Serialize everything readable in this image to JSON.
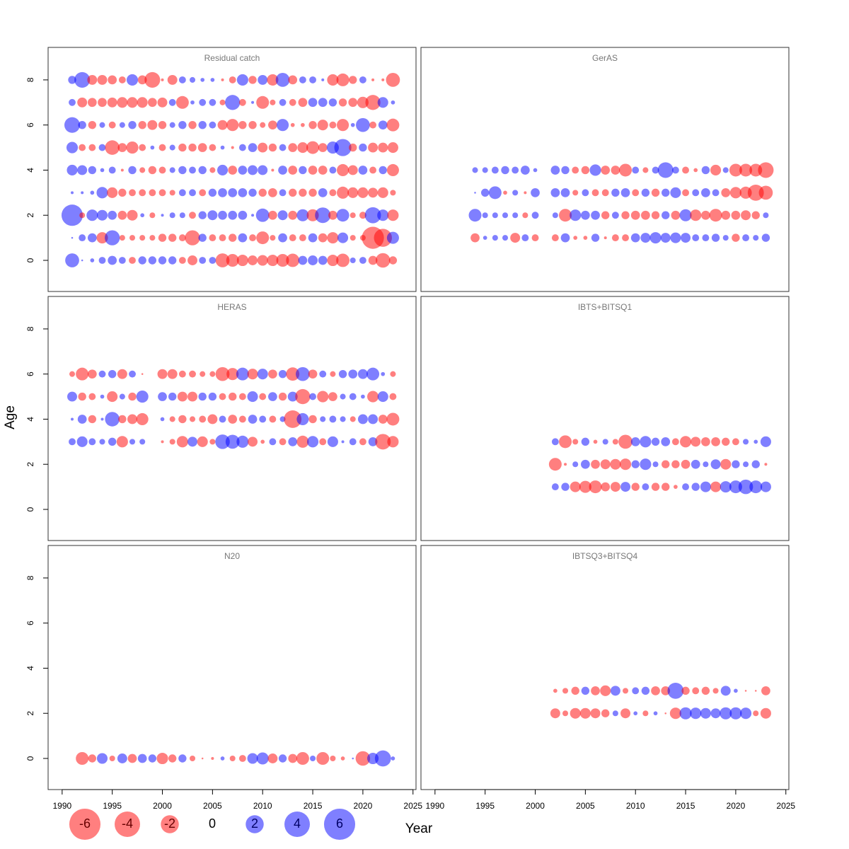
{
  "figure": {
    "xlabel": "Year",
    "ylabel": "Age",
    "xlim": [
      1988.6,
      2025.3
    ],
    "ylim": [
      -1.38,
      9.44
    ],
    "xticks": [
      1990,
      1995,
      2000,
      2005,
      2010,
      2015,
      2020,
      2025
    ],
    "yticks": [
      0,
      2,
      4,
      6,
      8
    ],
    "positive_color": "#0000ff",
    "negative_color": "#ff0000",
    "legend": {
      "values": [
        -6,
        -4,
        -2,
        0,
        2,
        4,
        6
      ]
    }
  },
  "chart_data": [
    {
      "type": "bubble",
      "title": "Residual catch",
      "x": [
        1991,
        1992,
        1993,
        1994,
        1995,
        1996,
        1997,
        1998,
        1999,
        2000,
        2001,
        2002,
        2003,
        2004,
        2005,
        2006,
        2007,
        2008,
        2009,
        2010,
        2011,
        2012,
        2013,
        2014,
        2015,
        2016,
        2017,
        2018,
        2019,
        2020,
        2021,
        2022,
        2023
      ],
      "ages": [
        0,
        1,
        2,
        3,
        4,
        5,
        6,
        7,
        8
      ],
      "residuals": [
        [
          1.2,
          0.02,
          0.1,
          0.3,
          0.5,
          0.3,
          -0.3,
          0.4,
          0.4,
          0.4,
          0.4,
          -0.3,
          -0.6,
          0.3,
          0.3,
          -1.2,
          -1.0,
          -0.8,
          -0.6,
          -0.7,
          -0.8,
          -1.0,
          -1.1,
          0.5,
          0.6,
          0.5,
          -0.8,
          -1.1,
          0.2,
          0.3,
          -0.5,
          -1.3,
          -0.4
        ],
        [
          0.02,
          0.3,
          0.5,
          -0.8,
          1.4,
          -0.2,
          -0.2,
          -0.2,
          -0.2,
          -0.4,
          -0.4,
          -0.3,
          -1.4,
          0.4,
          -0.3,
          -0.3,
          -0.4,
          0.5,
          -0.3,
          -1.0,
          -0.2,
          0.5,
          -0.3,
          -0.3,
          0.5,
          -0.5,
          -0.8,
          0.7,
          -0.2,
          -0.2,
          -3.0,
          -2.0,
          0.9
        ],
        [
          2.8,
          -0.2,
          0.8,
          0.7,
          0.5,
          -0.5,
          -0.7,
          0.1,
          -0.2,
          0.05,
          0.2,
          0.2,
          -0.3,
          0.4,
          0.6,
          0.5,
          0.5,
          0.5,
          0.05,
          1.1,
          -0.5,
          0.6,
          -0.5,
          0.9,
          -0.9,
          1.5,
          -0.5,
          1.0,
          -0.2,
          -0.3,
          1.6,
          0.8,
          -0.8
        ],
        [
          0.05,
          0.05,
          0.1,
          0.8,
          -0.7,
          -0.4,
          -0.3,
          -0.3,
          -0.3,
          -0.3,
          -0.2,
          0.3,
          0.3,
          -0.3,
          0.4,
          0.5,
          0.5,
          0.5,
          0.4,
          -0.4,
          -0.5,
          0.3,
          -0.4,
          -0.4,
          -0.4,
          0.5,
          -0.3,
          -0.9,
          -0.7,
          -0.7,
          -0.6,
          -0.7,
          -0.2
        ],
        [
          0.7,
          0.6,
          0.4,
          0.1,
          0.3,
          -0.05,
          0.4,
          -0.2,
          -0.4,
          -0.3,
          0.2,
          0.4,
          0.3,
          0.4,
          -0.2,
          0.7,
          -0.5,
          0.5,
          0.6,
          0.6,
          -0.05,
          0.5,
          -0.5,
          0.4,
          -0.5,
          -0.5,
          0.3,
          -0.9,
          -0.6,
          0.5,
          -0.3,
          0.4,
          -0.9
        ],
        [
          0.8,
          -0.3,
          -0.3,
          0.3,
          -1.3,
          -0.5,
          -0.9,
          -0.3,
          0.1,
          -0.3,
          0.2,
          -0.4,
          -0.4,
          -0.5,
          -0.3,
          0.1,
          -0.05,
          0.3,
          0.5,
          -0.6,
          -0.4,
          0.3,
          -0.5,
          -0.7,
          -1.0,
          -0.5,
          0.9,
          1.8,
          -0.4,
          0.4,
          -0.6,
          -0.6,
          -0.7
        ],
        [
          1.5,
          0.4,
          -0.4,
          0.2,
          -0.3,
          0.2,
          0.4,
          -0.4,
          -0.6,
          -0.4,
          0.2,
          0.4,
          -0.4,
          0.4,
          0.3,
          -0.6,
          -0.9,
          -0.4,
          -0.4,
          -0.2,
          -0.5,
          0.9,
          -0.1,
          -0.1,
          -0.4,
          -0.7,
          -0.3,
          -0.9,
          0.1,
          1.2,
          -0.3,
          0.5,
          -1.0
        ],
        [
          0.3,
          -0.6,
          -0.5,
          -0.5,
          -0.6,
          -0.7,
          -0.7,
          -0.7,
          -0.5,
          -0.6,
          0.3,
          -1.0,
          0.1,
          0.3,
          0.3,
          -0.2,
          1.4,
          -0.3,
          0.05,
          -1.0,
          -0.2,
          0.3,
          -0.3,
          -0.5,
          0.5,
          0.5,
          0.4,
          -0.4,
          -0.5,
          -0.8,
          -1.4,
          0.7,
          0.1
        ],
        [
          0.4,
          1.5,
          -0.6,
          -0.6,
          -0.5,
          -0.3,
          0.8,
          -0.5,
          -1.5,
          -0.05,
          -0.6,
          0.3,
          0.2,
          0.1,
          0.1,
          -0.05,
          -0.3,
          0.8,
          -0.4,
          0.6,
          -0.8,
          1.2,
          -0.5,
          0.3,
          0.3,
          0.05,
          -0.8,
          -1.0,
          -0.4,
          0.3,
          -0.05,
          -0.05,
          -1.2
        ]
      ]
    },
    {
      "type": "bubble",
      "title": "GerAS",
      "x": [
        1994,
        1995,
        1996,
        1997,
        1998,
        1999,
        2000,
        2001,
        2002,
        2003,
        2004,
        2005,
        2006,
        2007,
        2008,
        2009,
        2010,
        2011,
        2012,
        2013,
        2014,
        2015,
        2016,
        2017,
        2018,
        2019,
        2020,
        2021,
        2022,
        2023
      ],
      "ages": [
        1,
        2,
        3,
        4
      ],
      "residuals": [
        [
          -0.5,
          0.1,
          0.2,
          0.2,
          -0.6,
          0.3,
          -0.3,
          null,
          -0.3,
          0.5,
          -0.1,
          -0.1,
          0.4,
          -0.05,
          -0.3,
          -0.3,
          0.5,
          0.6,
          0.8,
          0.6,
          0.7,
          0.6,
          0.3,
          0.3,
          0.4,
          0.2,
          -0.4,
          0.3,
          0.2,
          0.4
        ],
        [
          1.0,
          0.2,
          0.2,
          0.2,
          0.2,
          -0.2,
          0.3,
          null,
          0.2,
          -1.0,
          0.8,
          0.5,
          0.5,
          -0.4,
          0.3,
          -0.4,
          -0.5,
          -0.5,
          -0.4,
          0.4,
          -0.5,
          0.9,
          -0.8,
          -0.5,
          -1.0,
          -0.5,
          -0.5,
          -0.6,
          -0.4,
          0.2
        ],
        [
          0.02,
          0.4,
          1.0,
          -0.1,
          0.2,
          -0.05,
          0.5,
          null,
          0.5,
          0.5,
          -0.2,
          0.3,
          -0.3,
          -0.3,
          0.4,
          0.5,
          -0.3,
          0.4,
          -0.4,
          0.4,
          0.7,
          -0.3,
          0.3,
          0.5,
          0.3,
          -0.5,
          -0.8,
          -0.9,
          -1.6,
          -1.2
        ],
        [
          0.2,
          0.2,
          0.3,
          0.4,
          0.3,
          0.5,
          0.1,
          null,
          0.5,
          0.4,
          -0.3,
          -0.4,
          0.8,
          -0.5,
          -0.5,
          -1.0,
          0.3,
          -0.2,
          0.3,
          1.5,
          0.3,
          -0.3,
          -0.1,
          0.4,
          -0.7,
          0.2,
          -1.0,
          -1.0,
          -1.0,
          -1.5
        ]
      ]
    },
    {
      "type": "bubble",
      "title": "HERAS",
      "x": [
        1991,
        1992,
        1993,
        1994,
        1995,
        1996,
        1997,
        1998,
        1999,
        2000,
        2001,
        2002,
        2003,
        2004,
        2005,
        2006,
        2007,
        2008,
        2009,
        2010,
        2011,
        2012,
        2013,
        2014,
        2015,
        2016,
        2017,
        2018,
        2019,
        2020,
        2021,
        2022,
        2023
      ],
      "ages": [
        3,
        4,
        5,
        6
      ],
      "residuals": [
        [
          0.3,
          0.7,
          0.3,
          0.2,
          0.4,
          -0.8,
          0.2,
          0.2,
          null,
          -0.05,
          -0.2,
          -0.8,
          0.6,
          -0.7,
          -0.2,
          1.3,
          1.2,
          0.9,
          -0.6,
          -0.1,
          0.3,
          -0.3,
          0.5,
          -0.9,
          0.8,
          -0.3,
          0.7,
          0.05,
          0.3,
          -0.3,
          0.5,
          -1.5,
          -0.8
        ],
        [
          0.05,
          0.5,
          -0.4,
          0.05,
          1.3,
          -0.4,
          -0.6,
          -0.9,
          null,
          0.1,
          -0.2,
          -0.4,
          -0.2,
          -0.3,
          -0.6,
          0.3,
          -0.5,
          -0.3,
          0.5,
          0.3,
          -0.3,
          0.2,
          -1.9,
          0.9,
          -0.4,
          0.2,
          0.3,
          0.2,
          -0.2,
          0.6,
          0.6,
          -0.5,
          -1.0
        ],
        [
          0.6,
          -0.4,
          -0.3,
          0.1,
          -0.7,
          0.2,
          -0.4,
          0.9,
          null,
          0.5,
          0.4,
          -0.6,
          -0.6,
          0.4,
          0.4,
          -0.3,
          -0.4,
          -0.3,
          0.7,
          -0.3,
          0.5,
          -0.4,
          0.6,
          -1.4,
          0.3,
          -0.8,
          -0.5,
          0.2,
          0.3,
          0.1,
          -0.8,
          0.7,
          -0.3
        ],
        [
          -0.2,
          -1.0,
          -0.5,
          0.3,
          0.4,
          -0.6,
          0.3,
          -0.02,
          null,
          -0.6,
          -0.6,
          -0.3,
          -0.3,
          -0.2,
          -0.2,
          -1.2,
          -0.9,
          1.0,
          -0.7,
          0.7,
          -0.5,
          0.4,
          -1.1,
          1.2,
          -0.5,
          0.3,
          -0.2,
          0.4,
          0.5,
          0.6,
          1.0,
          0.1,
          -0.2
        ]
      ]
    },
    {
      "type": "bubble",
      "title": "IBTS+BITSQ1",
      "x": [
        2002,
        2003,
        2004,
        2005,
        2006,
        2007,
        2008,
        2009,
        2010,
        2011,
        2012,
        2013,
        2014,
        2015,
        2016,
        2017,
        2018,
        2019,
        2020,
        2021,
        2022,
        2023
      ],
      "ages": [
        1,
        2,
        3
      ],
      "residuals": [
        [
          0.3,
          0.4,
          -0.7,
          -0.9,
          -1.0,
          -0.5,
          -0.6,
          0.6,
          -0.4,
          0.3,
          -0.4,
          -0.4,
          -0.1,
          0.3,
          0.4,
          0.7,
          -0.7,
          0.8,
          1.0,
          1.3,
          1.0,
          0.7
        ],
        [
          -1.0,
          -0.05,
          0.2,
          0.5,
          -0.5,
          -0.6,
          -0.7,
          -0.8,
          0.4,
          0.8,
          0.2,
          -0.4,
          -0.4,
          -0.5,
          0.5,
          0.2,
          0.6,
          -0.7,
          0.4,
          0.2,
          0.4,
          -0.05
        ],
        [
          0.3,
          -1.0,
          -0.2,
          0.4,
          -0.1,
          0.2,
          -0.2,
          -1.2,
          0.5,
          0.8,
          0.4,
          0.5,
          -0.3,
          -0.8,
          -0.6,
          -0.5,
          -0.5,
          -0.4,
          -0.3,
          0.2,
          0.1,
          0.7
        ]
      ]
    },
    {
      "type": "bubble",
      "title": "N20",
      "x": [
        1992,
        1993,
        1994,
        1995,
        1996,
        1997,
        1998,
        1999,
        2000,
        2001,
        2002,
        2003,
        2004,
        2005,
        2006,
        2007,
        2008,
        2009,
        2010,
        2011,
        2012,
        2013,
        2014,
        2015,
        2016,
        2017,
        2018,
        2019,
        2020,
        2021,
        2022,
        2023
      ],
      "ages": [
        0
      ],
      "residuals": [
        [
          -1.0,
          -0.4,
          0.7,
          -0.2,
          0.6,
          -0.5,
          0.5,
          0.4,
          -0.8,
          -0.4,
          0.4,
          -0.2,
          -0.02,
          -0.05,
          0.1,
          -0.2,
          -0.3,
          0.7,
          0.9,
          -0.6,
          0.4,
          -0.5,
          -1.0,
          0.2,
          -1.0,
          -0.2,
          -0.1,
          0.02,
          -1.3,
          0.8,
          1.6,
          0.1
        ]
      ]
    },
    {
      "type": "bubble",
      "title": "IBTSQ3+BITSQ4",
      "x": [
        2002,
        2003,
        2004,
        2005,
        2006,
        2007,
        2008,
        2009,
        2010,
        2011,
        2012,
        2013,
        2014,
        2015,
        2016,
        2017,
        2018,
        2019,
        2020,
        2021,
        2022,
        2023
      ],
      "ages": [
        2,
        3
      ],
      "residuals": [
        [
          -0.6,
          -0.2,
          -0.7,
          -0.7,
          -0.6,
          -0.4,
          0.2,
          -0.6,
          0.1,
          -0.2,
          0.1,
          -0.02,
          -0.8,
          0.9,
          0.8,
          0.7,
          0.6,
          0.9,
          0.9,
          0.8,
          -0.2,
          -0.7
        ],
        [
          -0.1,
          -0.2,
          -0.4,
          0.4,
          -0.5,
          -0.7,
          0.6,
          -0.2,
          0.3,
          0.4,
          -0.5,
          -0.5,
          1.6,
          -0.4,
          -0.3,
          -0.4,
          -0.2,
          0.6,
          0.1,
          -0.02,
          -0.02,
          -0.5
        ]
      ]
    }
  ]
}
